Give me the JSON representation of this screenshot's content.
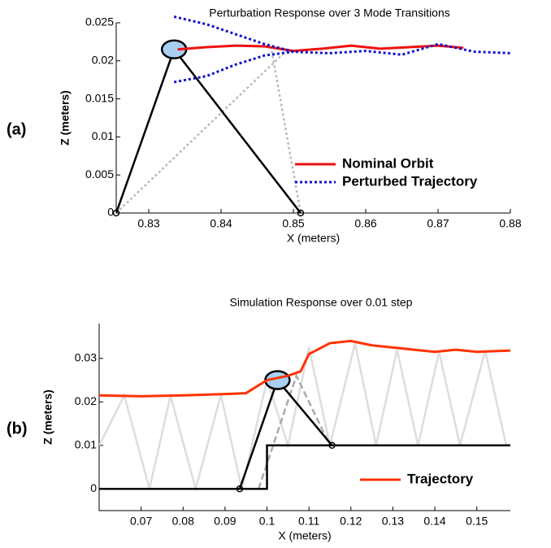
{
  "chart_data": [
    {
      "type": "line",
      "panel_label": "(a)",
      "title": "Perturbation Response over 3 Mode Transitions",
      "xlabel": "X (meters)",
      "ylabel": "Z (meters)",
      "xlim": [
        0.8255,
        0.88
      ],
      "ylim": [
        0,
        0.025
      ],
      "xticks": [
        0.83,
        0.84,
        0.85,
        0.86,
        0.87,
        0.88
      ],
      "yticks": [
        0,
        0.005,
        0.01,
        0.015,
        0.02,
        0.025
      ],
      "legend": "lower right",
      "series": [
        {
          "color": "#bbbbbb",
          "style": "dotted",
          "x": [
            0.8255,
            0.849
          ],
          "values": [
            0,
            0.0213
          ]
        },
        {
          "color": "#bbbbbb",
          "style": "dotted",
          "x": [
            0.847,
            0.851
          ],
          "values": [
            0.0213,
            0
          ]
        },
        {
          "color": "#000000",
          "style": "solid",
          "body": true,
          "x": [
            0.8255,
            0.8335,
            0.851
          ],
          "values": [
            0,
            0.0215,
            0
          ]
        },
        {
          "name": "Nominal Orbit",
          "color": "#ee1111",
          "style": "solid",
          "x": [
            0.834,
            0.838,
            0.842,
            0.846,
            0.85,
            0.854,
            0.858,
            0.862,
            0.866,
            0.87,
            0.8735
          ],
          "values": [
            0.0215,
            0.0218,
            0.022,
            0.0219,
            0.0213,
            0.0216,
            0.022,
            0.0216,
            0.0218,
            0.022,
            0.0217
          ]
        },
        {
          "name": "Perturbed Trajectory",
          "color": "#1111cc",
          "style": "dotted",
          "x": [
            0.8335,
            0.838,
            0.842,
            0.846,
            0.85,
            0.855,
            0.86,
            0.865,
            0.87,
            0.875,
            0.88,
            0.88,
            0.8335,
            0.838,
            0.842,
            0.846,
            0.85
          ],
          "values": [
            0.0258,
            0.0248,
            0.0235,
            0.0222,
            0.0212,
            0.021,
            0.0213,
            0.0208,
            0.0222,
            0.0212,
            0.021,
            null,
            0.0172,
            0.018,
            0.0195,
            0.0207,
            0.0212
          ]
        }
      ]
    },
    {
      "type": "line",
      "panel_label": "(b)",
      "title": "Simulation Response over 0.01 step",
      "xlabel": "X (meters)",
      "ylabel": "Z (meters)",
      "xlim": [
        0.06,
        0.158
      ],
      "ylim": [
        -0.005,
        0.038
      ],
      "xticks": [
        0.07,
        0.08,
        0.09,
        0.1,
        0.11,
        0.12,
        0.13,
        0.14,
        0.15
      ],
      "yticks": [
        0,
        0.01,
        0.02,
        0.03
      ],
      "legend": "lower right",
      "series": [
        {
          "color": "#dddddd",
          "style": "solid",
          "x": [
            0.06,
            0.066,
            0.072,
            0.077,
            0.083,
            0.089,
            0.094,
            0.1,
            0.105,
            0.11,
            0.115,
            0.121,
            0.126,
            0.131,
            0.136,
            0.141,
            0.146,
            0.152,
            0.157
          ],
          "values": [
            0.01,
            0.0215,
            0,
            0.0214,
            0,
            0.0216,
            0,
            0.025,
            0.01,
            0.0325,
            0.01,
            0.0335,
            0.01,
            0.032,
            0.01,
            0.0315,
            0.01,
            0.0318,
            0.01
          ]
        },
        {
          "color": "#aaaaaa",
          "style": "dashed",
          "x": [
            0.098,
            0.107,
            0.115
          ],
          "values": [
            0,
            0.026,
            0.01
          ]
        },
        {
          "color": "#000000",
          "style": "solid",
          "x": [
            0.06,
            0.1,
            0.1,
            0.158
          ],
          "values": [
            0,
            0,
            0.01,
            0.01
          ]
        },
        {
          "color": "#000000",
          "style": "solid",
          "body": true,
          "x": [
            0.0935,
            0.1025,
            0.1155
          ],
          "values": [
            0,
            0.025,
            0.01
          ]
        },
        {
          "name": "Trajectory",
          "color": "#ff3300",
          "style": "solid",
          "x": [
            0.06,
            0.07,
            0.08,
            0.09,
            0.095,
            0.1,
            0.105,
            0.108,
            0.11,
            0.115,
            0.12,
            0.125,
            0.13,
            0.135,
            0.14,
            0.145,
            0.15,
            0.158
          ],
          "values": [
            0.0215,
            0.0213,
            0.0215,
            0.0218,
            0.022,
            0.025,
            0.026,
            0.027,
            0.031,
            0.0335,
            0.034,
            0.033,
            0.0325,
            0.032,
            0.0315,
            0.032,
            0.0315,
            0.0318
          ]
        }
      ]
    }
  ]
}
